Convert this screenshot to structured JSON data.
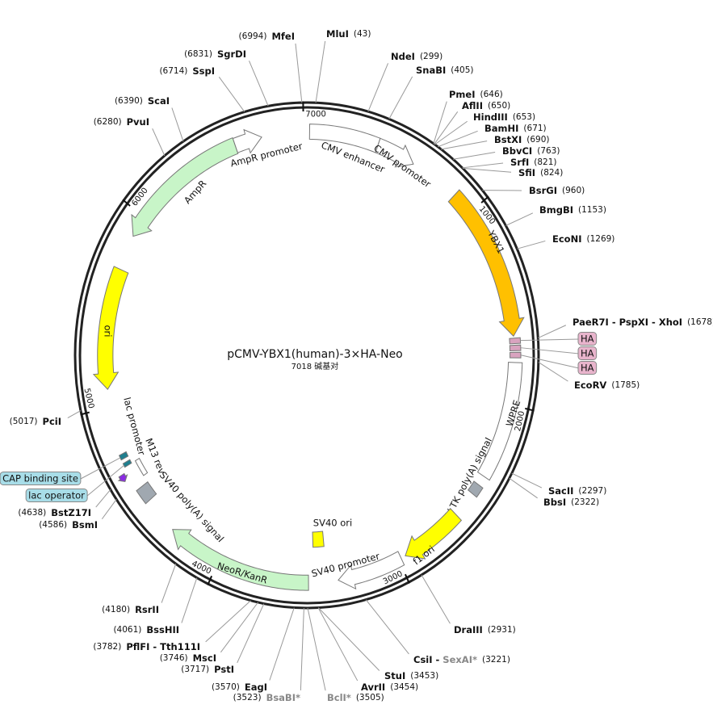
{
  "title": "pCMV-YBX1(human)-3×HA-Neo",
  "size": {
    "value": 7018,
    "label": "7018 碱基对"
  },
  "ticks": [
    1000,
    2000,
    3000,
    4000,
    5000,
    6000,
    7000
  ],
  "sites": [
    {
      "name": "MluI",
      "position": {
        "value": 43,
        "label": "(43)"
      }
    },
    {
      "name": "NdeI",
      "position": {
        "value": 299,
        "label": "(299)"
      }
    },
    {
      "name": "SnaBI",
      "position": {
        "value": 405,
        "label": "(405)"
      }
    },
    {
      "name": "PmeI",
      "position": {
        "value": 646,
        "label": "(646)"
      }
    },
    {
      "name": "AflII",
      "position": {
        "value": 650,
        "label": "(650)"
      }
    },
    {
      "name": "HindIII",
      "position": {
        "value": 653,
        "label": "(653)"
      }
    },
    {
      "name": "BamHI",
      "position": {
        "value": 671,
        "label": "(671)"
      }
    },
    {
      "name": "BstXI",
      "position": {
        "value": 690,
        "label": "(690)"
      }
    },
    {
      "name": "BbvCI",
      "position": {
        "value": 763,
        "label": "(763)"
      }
    },
    {
      "name": "SrfI",
      "position": {
        "value": 821,
        "label": "(821)"
      }
    },
    {
      "name": "SfiI",
      "position": {
        "value": 824,
        "label": "(824)"
      }
    },
    {
      "name": "BsrGI",
      "position": {
        "value": 960,
        "label": "(960)"
      }
    },
    {
      "name": "BmgBI",
      "position": {
        "value": 1153,
        "label": "(1153)"
      }
    },
    {
      "name": "EcoNI",
      "position": {
        "value": 1269,
        "label": "(1269)"
      }
    },
    {
      "name": "PaeR7I - PspXI - XhoI",
      "position": {
        "value": 1678,
        "label": "(1678)"
      }
    },
    {
      "name": "EcoRV",
      "position": {
        "value": 1785,
        "label": "(1785)"
      }
    },
    {
      "name": "SacII",
      "position": {
        "value": 2297,
        "label": "(2297)"
      }
    },
    {
      "name": "BbsI",
      "position": {
        "value": 2322,
        "label": "(2322)"
      }
    },
    {
      "name": "DraIII",
      "position": {
        "value": 2931,
        "label": "(2931)"
      }
    },
    {
      "name": "CsiI -",
      "alt_name": "SexAI*",
      "alt_color": "#888888",
      "position": {
        "value": 3221,
        "label": "(3221)"
      }
    },
    {
      "name": "StuI",
      "position": {
        "value": 3453,
        "label": "(3453)"
      }
    },
    {
      "name": "AvrII",
      "position": {
        "value": 3454,
        "label": "(3454)"
      }
    },
    {
      "name": "BclI*",
      "color": "#888888",
      "position": {
        "value": 3505,
        "label": "(3505)"
      }
    },
    {
      "name": "BsaBI*",
      "color": "#888888",
      "position": {
        "value": 3523,
        "label": "(3523)"
      }
    },
    {
      "name": "EagI",
      "position": {
        "value": 3570,
        "label": "(3570)"
      }
    },
    {
      "name": "PstI",
      "position": {
        "value": 3717,
        "label": "(3717)"
      }
    },
    {
      "name": "MscI",
      "position": {
        "value": 3746,
        "label": "(3746)"
      }
    },
    {
      "name": "PflFI - Tth111I",
      "position": {
        "value": 3782,
        "label": "(3782)"
      }
    },
    {
      "name": "BssHII",
      "position": {
        "value": 4061,
        "label": "(4061)"
      }
    },
    {
      "name": "RsrII",
      "position": {
        "value": 4180,
        "label": "(4180)"
      }
    },
    {
      "name": "BsmI",
      "position": {
        "value": 4586,
        "label": "(4586)"
      }
    },
    {
      "name": "BstZ17I",
      "position": {
        "value": 4638,
        "label": "(4638)"
      }
    },
    {
      "name": "PciI",
      "position": {
        "value": 5017,
        "label": "(5017)"
      }
    },
    {
      "name": "PvuI",
      "position": {
        "value": 6280,
        "label": "(6280)"
      }
    },
    {
      "name": "ScaI",
      "position": {
        "value": 6390,
        "label": "(6390)"
      }
    },
    {
      "name": "SspI",
      "position": {
        "value": 6714,
        "label": "(6714)"
      }
    },
    {
      "name": "SgrDI",
      "position": {
        "value": 6831,
        "label": "(6831)"
      }
    },
    {
      "name": "MfeI",
      "position": {
        "value": 6994,
        "label": "(6994)"
      }
    }
  ],
  "features": [
    {
      "label": "CMV enhancer",
      "start": 15,
      "end": 395,
      "color": "#ffffff",
      "direction": 0
    },
    {
      "label": "CMV promoter",
      "start": 395,
      "end": 610,
      "color": "#ffffff",
      "direction": 1
    },
    {
      "label": "YBX1",
      "start": 880,
      "end": 1660,
      "color": "#ffc000",
      "direction": 1
    },
    {
      "label": "HA",
      "start": 1670,
      "end": 1697,
      "color": "#d9a3bf",
      "direction": 0
    },
    {
      "label": "HA",
      "start": 1705,
      "end": 1732,
      "color": "#d9a3bf",
      "direction": 0
    },
    {
      "label": "HA",
      "start": 1740,
      "end": 1767,
      "color": "#d9a3bf",
      "direction": 0
    },
    {
      "label": "WPRE",
      "start": 1790,
      "end": 2380,
      "color": "#ffffff",
      "direction": 0
    },
    {
      "label": "HSV TK poly(A) signal",
      "start": 2430,
      "end": 2485,
      "color": "#a0a8b0",
      "direction": 0
    },
    {
      "label": "f1 ori",
      "start": 2620,
      "end": 2960,
      "color": "#ffff00",
      "direction": 1
    },
    {
      "label": "SV40 promoter",
      "start": 2985,
      "end": 3340,
      "color": "#ffffff",
      "direction": 1
    },
    {
      "label": "SV40 ori",
      "start": 3400,
      "end": 3470,
      "color": "#ffff00",
      "direction": 0
    },
    {
      "label": "NeoR/KanR",
      "start": 3500,
      "end": 4290,
      "color": "#c8f5c8",
      "direction": 1
    },
    {
      "label": "SV40 poly(A) signal",
      "start": 4480,
      "end": 4560,
      "color": "#a0a8b0",
      "direction": 0
    },
    {
      "label": "lac promoter",
      "start": 4600,
      "end": 4690,
      "color": "#ffffff",
      "direction": 0
    },
    {
      "label": "M13 rev",
      "start": 4630,
      "end": 4665,
      "color": "#8a2be2",
      "direction": -1
    },
    {
      "label": "lac operator",
      "start": 4690,
      "end": 4710,
      "color": "#1f7f8f",
      "direction": 0
    },
    {
      "label": "CAP binding site",
      "start": 4730,
      "end": 4755,
      "color": "#1f7f8f",
      "direction": 0
    },
    {
      "label": "ori",
      "start": 5090,
      "end": 5710,
      "color": "#ffff00",
      "direction": -1
    },
    {
      "label": "AmpR",
      "start": 5890,
      "end": 6620,
      "color": "#c8f5c8",
      "direction": -1
    },
    {
      "label": "AmpR promoter",
      "start": 6620,
      "end": 6770,
      "color": "#ffffff",
      "direction": 1
    }
  ]
}
